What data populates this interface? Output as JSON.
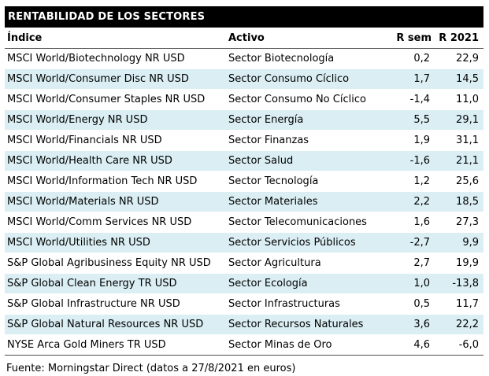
{
  "title": "RENTABILIDAD DE LOS SECTORES",
  "table": {
    "columns": [
      "Índice",
      "Activo",
      "R sem",
      "R 2021"
    ],
    "rows": [
      {
        "indice": "MSCI World/Biotechnology NR USD",
        "activo": "Sector Biotecnología",
        "r_sem": "0,2",
        "r_2021": "22,9"
      },
      {
        "indice": "MSCI World/Consumer Disc NR USD",
        "activo": "Sector Consumo Cíclico",
        "r_sem": "1,7",
        "r_2021": "14,5"
      },
      {
        "indice": "MSCI World/Consumer Staples NR USD",
        "activo": "Sector Consumo No Cíclico",
        "r_sem": "-1,4",
        "r_2021": "11,0"
      },
      {
        "indice": "MSCI World/Energy NR USD",
        "activo": "Sector Energía",
        "r_sem": "5,5",
        "r_2021": "29,1"
      },
      {
        "indice": "MSCI World/Financials NR USD",
        "activo": "Sector Finanzas",
        "r_sem": "1,9",
        "r_2021": "31,1"
      },
      {
        "indice": "MSCI World/Health Care NR USD",
        "activo": "Sector Salud",
        "r_sem": "-1,6",
        "r_2021": "21,1"
      },
      {
        "indice": "MSCI World/Information Tech NR USD",
        "activo": "Sector Tecnología",
        "r_sem": "1,2",
        "r_2021": "25,6"
      },
      {
        "indice": "MSCI World/Materials NR USD",
        "activo": "Sector Materiales",
        "r_sem": "2,2",
        "r_2021": "18,5"
      },
      {
        "indice": "MSCI World/Comm Services NR USD",
        "activo": "Sector Telecomunicaciones",
        "r_sem": "1,6",
        "r_2021": "27,3"
      },
      {
        "indice": "MSCI World/Utilities NR USD",
        "activo": "Sector Servicios Públicos",
        "r_sem": "-2,7",
        "r_2021": "9,9"
      },
      {
        "indice": "S&P Global Agribusiness Equity NR USD",
        "activo": "Sector Agricultura",
        "r_sem": "2,7",
        "r_2021": "19,9"
      },
      {
        "indice": "S&P Global Clean Energy TR USD",
        "activo": "Sector Ecología",
        "r_sem": "1,0",
        "r_2021": "-13,8"
      },
      {
        "indice": "S&P Global Infrastructure NR USD",
        "activo": "Sector Infrastructuras",
        "r_sem": "0,5",
        "r_2021": "11,7"
      },
      {
        "indice": "S&P Global Natural Resources NR USD",
        "activo": "Sector Recursos Naturales",
        "r_sem": "3,6",
        "r_2021": "22,2"
      },
      {
        "indice": "NYSE Arca Gold Miners TR USD",
        "activo": "Sector Minas de Oro",
        "r_sem": "4,6",
        "r_2021": "-6,0"
      }
    ]
  },
  "footer": "Fuente: Morningstar Direct (datos a 27/8/2021 en euros)",
  "colors": {
    "header_bar_bg": "#000000",
    "header_bar_text": "#ffffff",
    "alt_row_bg": "#daeef3",
    "rule_color": "#4d4d4d",
    "text_color": "#000000"
  }
}
